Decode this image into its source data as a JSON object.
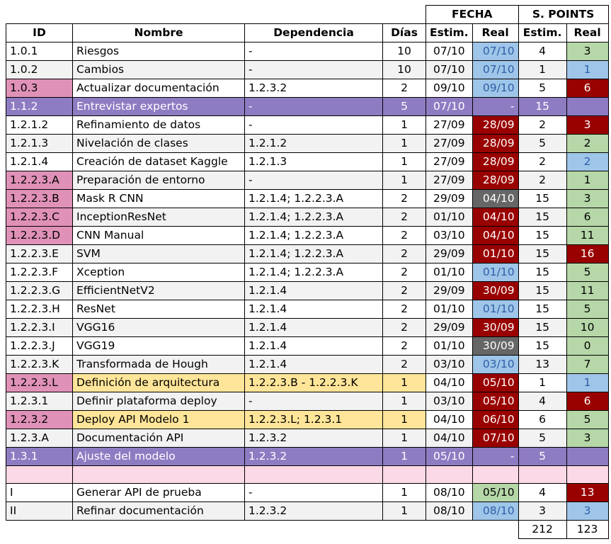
{
  "headers": {
    "fecha": "FECHA",
    "spoints": "S. POINTS",
    "id": "ID",
    "nombre": "Nombre",
    "dependencia": "Dependencia",
    "dias": "Días",
    "estim": "Estim.",
    "real": "Real"
  },
  "colors": {
    "purple": "#8e7cc3",
    "yellow": "#ffe599",
    "pink": "#e091b8",
    "darkred": "#990000",
    "lightblue": "#9fc5e8",
    "green": "#b6d7a8",
    "gray": "#666666"
  },
  "rows": [
    {
      "id": "1.0.1",
      "nombre": "Riesgos",
      "dep": "-",
      "dias": "10",
      "fe": "07/10",
      "fr": "07/10",
      "se": "4",
      "sr": "3",
      "style": "",
      "idc": "",
      "frc": "lb",
      "src": "g"
    },
    {
      "id": "1.0.2",
      "nombre": "Cambios",
      "dep": "-",
      "dias": "10",
      "fe": "07/10",
      "fr": "07/10",
      "se": "1",
      "sr": "1",
      "style": "",
      "idc": "",
      "frc": "lb",
      "src": "lb"
    },
    {
      "id": "1.0.3",
      "nombre": "Actualizar documentación",
      "dep": "1.2.3.2",
      "dias": "2",
      "fe": "09/10",
      "fr": "09/10",
      "se": "5",
      "sr": "6",
      "style": "",
      "idc": "p",
      "frc": "lb",
      "src": "dr"
    },
    {
      "id": "1.1.2",
      "nombre": "Entrevistar expertos",
      "dep": "-",
      "dias": "5",
      "fe": "07/10",
      "fr": "-",
      "se": "15",
      "sr": "",
      "style": "purple",
      "idc": "",
      "frc": "",
      "src": ""
    },
    {
      "id": "1.2.1.2",
      "nombre": "Refinamiento de datos",
      "dep": "-",
      "dias": "1",
      "fe": "27/09",
      "fr": "28/09",
      "se": "2",
      "sr": "3",
      "style": "",
      "idc": "",
      "frc": "dr",
      "src": "dr"
    },
    {
      "id": "1.2.1.3",
      "nombre": "Nivelación de clases",
      "dep": "1.2.1.2",
      "dias": "1",
      "fe": "27/09",
      "fr": "28/09",
      "se": "5",
      "sr": "2",
      "style": "",
      "idc": "",
      "frc": "dr",
      "src": "g"
    },
    {
      "id": "1.2.1.4",
      "nombre": "Creación de dataset Kaggle",
      "dep": "1.2.1.3",
      "dias": "1",
      "fe": "27/09",
      "fr": "28/09",
      "se": "2",
      "sr": "2",
      "style": "",
      "idc": "",
      "frc": "dr",
      "src": "lb"
    },
    {
      "id": "1.2.2.3.A",
      "nombre": "Preparación de entorno",
      "dep": "-",
      "dias": "1",
      "fe": "27/09",
      "fr": "28/09",
      "se": "2",
      "sr": "1",
      "style": "",
      "idc": "p",
      "frc": "dr",
      "src": "g"
    },
    {
      "id": "1.2.2.3.B",
      "nombre": "Mask R CNN",
      "dep": "1.2.1.4; 1.2.2.3.A",
      "dias": "2",
      "fe": "29/09",
      "fr": "04/10",
      "se": "15",
      "sr": "3",
      "style": "",
      "idc": "p",
      "frc": "gr",
      "src": "g"
    },
    {
      "id": "1.2.2.3.C",
      "nombre": "InceptionResNet",
      "dep": "1.2.1.4; 1.2.2.3.A",
      "dias": "2",
      "fe": "01/10",
      "fr": "04/10",
      "se": "15",
      "sr": "6",
      "style": "",
      "idc": "p",
      "frc": "dr",
      "src": "g"
    },
    {
      "id": "1.2.2.3.D",
      "nombre": "CNN Manual",
      "dep": "1.2.1.4; 1.2.2.3.A",
      "dias": "2",
      "fe": "03/10",
      "fr": "04/10",
      "se": "15",
      "sr": "11",
      "style": "",
      "idc": "p",
      "frc": "dr",
      "src": "g"
    },
    {
      "id": "1.2.2.3.E",
      "nombre": "SVM",
      "dep": "1.2.1.4; 1.2.2.3.A",
      "dias": "2",
      "fe": "29/09",
      "fr": "01/10",
      "se": "15",
      "sr": "16",
      "style": "",
      "idc": "",
      "frc": "dr",
      "src": "dr"
    },
    {
      "id": "1.2.2.3.F",
      "nombre": "Xception",
      "dep": "1.2.1.4; 1.2.2.3.A",
      "dias": "2",
      "fe": "01/10",
      "fr": "01/10",
      "se": "15",
      "sr": "5",
      "style": "",
      "idc": "",
      "frc": "lb",
      "src": "g"
    },
    {
      "id": "1.2.2.3.G",
      "nombre": "EfficientNetV2",
      "dep": "1.2.1.4",
      "dias": "2",
      "fe": "29/09",
      "fr": "30/09",
      "se": "15",
      "sr": "11",
      "style": "",
      "idc": "",
      "frc": "dr",
      "src": "g"
    },
    {
      "id": "1.2.2.3.H",
      "nombre": "ResNet",
      "dep": "1.2.1.4",
      "dias": "2",
      "fe": "01/10",
      "fr": "01/10",
      "se": "15",
      "sr": "5",
      "style": "",
      "idc": "",
      "frc": "lb",
      "src": "g"
    },
    {
      "id": "1.2.2.3.I",
      "nombre": "VGG16",
      "dep": "1.2.1.4",
      "dias": "2",
      "fe": "29/09",
      "fr": "30/09",
      "se": "15",
      "sr": "10",
      "style": "",
      "idc": "",
      "frc": "dr",
      "src": "g"
    },
    {
      "id": "1.2.2.3.J",
      "nombre": "VGG19",
      "dep": "1.2.1.4",
      "dias": "2",
      "fe": "01/10",
      "fr": "30/09",
      "se": "15",
      "sr": "0",
      "style": "",
      "idc": "",
      "frc": "gr",
      "src": "g"
    },
    {
      "id": "1.2.2.3.K",
      "nombre": "Transformada de Hough",
      "dep": "1.2.1.4",
      "dias": "2",
      "fe": "03/10",
      "fr": "03/10",
      "se": "13",
      "sr": "7",
      "style": "",
      "idc": "",
      "frc": "lb",
      "src": "g"
    },
    {
      "id": "1.2.2.3.L",
      "nombre": "Definición de arquitectura",
      "dep": "1.2.2.3.B - 1.2.2.3.K",
      "dias": "1",
      "fe": "04/10",
      "fr": "05/10",
      "se": "1",
      "sr": "1",
      "style": "yellow",
      "idc": "p",
      "frc": "dr",
      "src": "lb"
    },
    {
      "id": "1.2.3.1",
      "nombre": "Definir plataforma deploy",
      "dep": "-",
      "dias": "1",
      "fe": "03/10",
      "fr": "05/10",
      "se": "4",
      "sr": "6",
      "style": "",
      "idc": "",
      "frc": "dr",
      "src": "dr"
    },
    {
      "id": "1.2.3.2",
      "nombre": "Deploy API Modelo 1",
      "dep": "1.2.2.3.L; 1.2.3.1",
      "dias": "1",
      "fe": "04/10",
      "fr": "06/10",
      "se": "6",
      "sr": "5",
      "style": "yellow",
      "idc": "p",
      "frc": "dr",
      "src": "g"
    },
    {
      "id": "1.2.3.A",
      "nombre": "Documentación API",
      "dep": "1.2.3.2",
      "dias": "1",
      "fe": "04/10",
      "fr": "07/10",
      "se": "5",
      "sr": "3",
      "style": "",
      "idc": "",
      "frc": "dr",
      "src": "g"
    },
    {
      "id": "1.3.1",
      "nombre": "Ajuste del modelo",
      "dep": "1.2.3.2",
      "dias": "1",
      "fe": "05/10",
      "fr": "-",
      "se": "5",
      "sr": "",
      "style": "purple",
      "idc": "",
      "frc": "",
      "src": ""
    },
    {
      "id": "",
      "nombre": "",
      "dep": "",
      "dias": "",
      "fe": "",
      "fr": "",
      "se": "",
      "sr": "",
      "style": "pinkrow",
      "idc": "",
      "frc": "",
      "src": ""
    },
    {
      "id": "I",
      "nombre": "Generar API de prueba",
      "dep": "-",
      "dias": "1",
      "fe": "08/10",
      "fr": "05/10",
      "se": "4",
      "sr": "13",
      "style": "",
      "idc": "",
      "frc": "g",
      "src": "dr"
    },
    {
      "id": "II",
      "nombre": "Refinar documentación",
      "dep": "1.2.3.2",
      "dias": "1",
      "fe": "08/10",
      "fr": "08/10",
      "se": "3",
      "sr": "3",
      "style": "",
      "idc": "",
      "frc": "lb",
      "src": "lb"
    }
  ],
  "totals": {
    "estim": "212",
    "real": "123"
  }
}
